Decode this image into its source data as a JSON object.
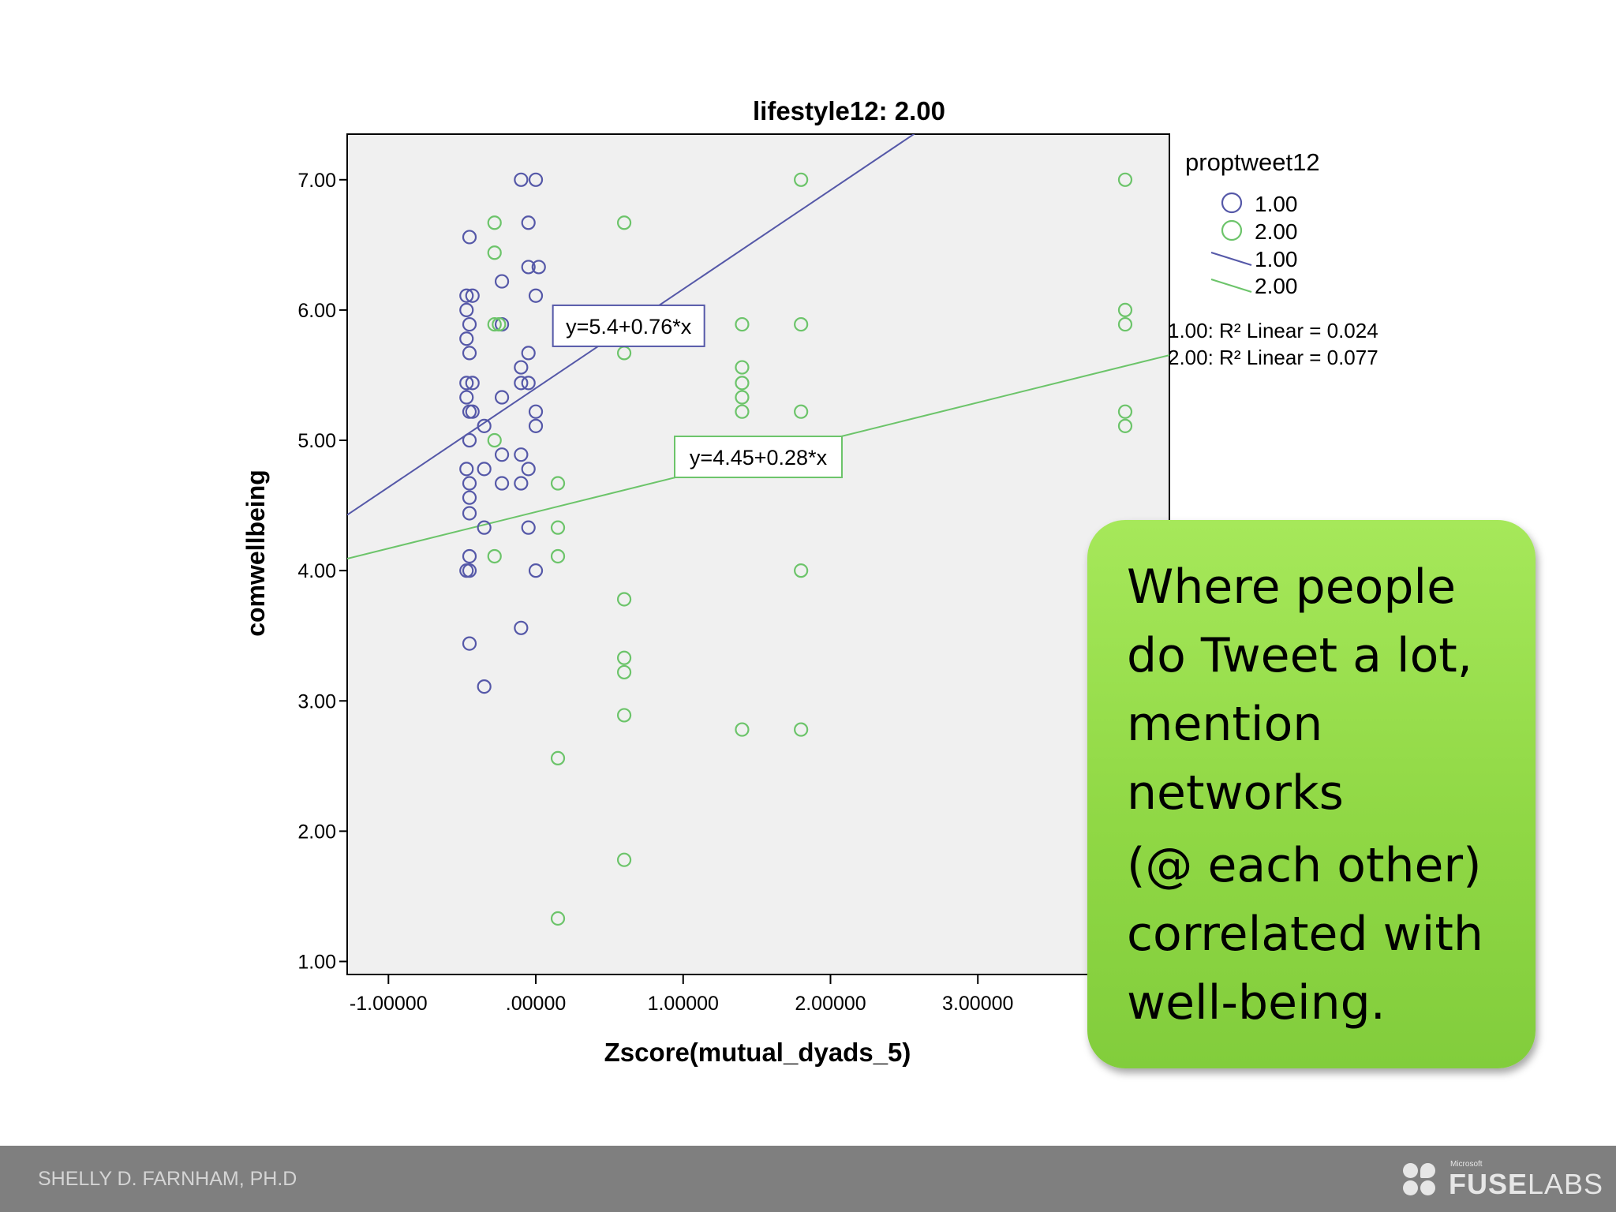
{
  "chart_data": {
    "type": "scatter",
    "title": "lifestyle12: 2.00",
    "xlabel": "Zscore(mutual_dyads_5)",
    "ylabel": "comwellbeing",
    "xlim": [
      -1.28,
      4.3
    ],
    "ylim": [
      0.9,
      7.35
    ],
    "xticks": [
      -1,
      0,
      1,
      2,
      3
    ],
    "xtick_labels": [
      "-1.00000",
      ".00000",
      "1.00000",
      "2.00000",
      "3.00000"
    ],
    "yticks": [
      1,
      2,
      3,
      4,
      5,
      6,
      7
    ],
    "ytick_labels": [
      "1.00",
      "2.00",
      "3.00",
      "4.00",
      "5.00",
      "6.00",
      "7.00"
    ],
    "grid": false,
    "legend_title": "proptweet12",
    "legend_position": "right",
    "series": [
      {
        "name": "1.00",
        "color": "#5558a8",
        "points": [
          [
            -0.1,
            7.0
          ],
          [
            0.0,
            7.0
          ],
          [
            -0.45,
            6.56
          ],
          [
            -0.05,
            6.67
          ],
          [
            -0.05,
            6.33
          ],
          [
            0.02,
            6.33
          ],
          [
            -0.23,
            6.22
          ],
          [
            0.0,
            6.11
          ],
          [
            -0.47,
            6.11
          ],
          [
            -0.43,
            6.11
          ],
          [
            -0.47,
            6.0
          ],
          [
            -0.45,
            5.89
          ],
          [
            -0.23,
            5.89
          ],
          [
            -0.47,
            5.78
          ],
          [
            -0.45,
            5.67
          ],
          [
            -0.05,
            5.67
          ],
          [
            -0.1,
            5.56
          ],
          [
            -0.1,
            5.44
          ],
          [
            -0.05,
            5.44
          ],
          [
            -0.47,
            5.44
          ],
          [
            -0.43,
            5.44
          ],
          [
            -0.47,
            5.33
          ],
          [
            -0.45,
            5.22
          ],
          [
            -0.23,
            5.33
          ],
          [
            0.0,
            5.22
          ],
          [
            -0.43,
            5.22
          ],
          [
            -0.35,
            5.11
          ],
          [
            0.0,
            5.11
          ],
          [
            -0.45,
            5.0
          ],
          [
            -0.23,
            4.89
          ],
          [
            -0.1,
            4.89
          ],
          [
            -0.47,
            4.78
          ],
          [
            -0.35,
            4.78
          ],
          [
            -0.05,
            4.78
          ],
          [
            -0.45,
            4.67
          ],
          [
            -0.23,
            4.67
          ],
          [
            -0.1,
            4.67
          ],
          [
            -0.45,
            4.56
          ],
          [
            -0.45,
            4.44
          ],
          [
            -0.35,
            4.33
          ],
          [
            -0.05,
            4.33
          ],
          [
            -0.45,
            4.11
          ],
          [
            -0.47,
            4.0
          ],
          [
            -0.45,
            4.0
          ],
          [
            0.0,
            4.0
          ],
          [
            -0.1,
            3.56
          ],
          [
            -0.45,
            3.44
          ],
          [
            -0.35,
            3.11
          ]
        ],
        "fit": {
          "intercept": 5.4,
          "slope": 0.76,
          "equation": "y=5.4+0.76*x",
          "r2_label": "1.00: R² Linear = 0.024"
        }
      },
      {
        "name": "2.00",
        "color": "#6cc46a",
        "points": [
          [
            -0.28,
            6.67
          ],
          [
            -0.28,
            6.44
          ],
          [
            -0.28,
            5.89
          ],
          [
            -0.25,
            5.89
          ],
          [
            -0.28,
            5.0
          ],
          [
            -0.28,
            4.11
          ],
          [
            0.15,
            4.67
          ],
          [
            0.15,
            4.33
          ],
          [
            0.15,
            4.11
          ],
          [
            0.15,
            2.56
          ],
          [
            0.15,
            1.33
          ],
          [
            0.6,
            6.67
          ],
          [
            0.6,
            5.67
          ],
          [
            0.6,
            3.78
          ],
          [
            0.6,
            3.33
          ],
          [
            0.6,
            3.22
          ],
          [
            0.6,
            2.89
          ],
          [
            0.6,
            1.78
          ],
          [
            1.4,
            5.89
          ],
          [
            1.4,
            5.56
          ],
          [
            1.4,
            5.44
          ],
          [
            1.4,
            5.33
          ],
          [
            1.4,
            5.22
          ],
          [
            1.4,
            2.78
          ],
          [
            1.8,
            7.0
          ],
          [
            1.8,
            5.89
          ],
          [
            1.8,
            5.22
          ],
          [
            1.8,
            4.0
          ],
          [
            1.8,
            2.78
          ],
          [
            4.0,
            7.0
          ],
          [
            4.0,
            6.0
          ],
          [
            4.0,
            5.89
          ],
          [
            4.0,
            5.22
          ],
          [
            4.0,
            5.11
          ]
        ],
        "fit": {
          "intercept": 4.45,
          "slope": 0.28,
          "equation": "y=4.45+0.28*x",
          "r2_label": "2.00: R² Linear = 0.077"
        }
      }
    ]
  },
  "callout": {
    "paragraph1": "Where people do Tweet a lot, mention networks",
    "paragraph2": "(@ each other) correlated with well-being."
  },
  "footer": {
    "author": "SHELLY D. FARNHAM, PH.D",
    "logo_small": "Microsoft",
    "logo_bold": "FUSE",
    "logo_light": "LABS"
  }
}
